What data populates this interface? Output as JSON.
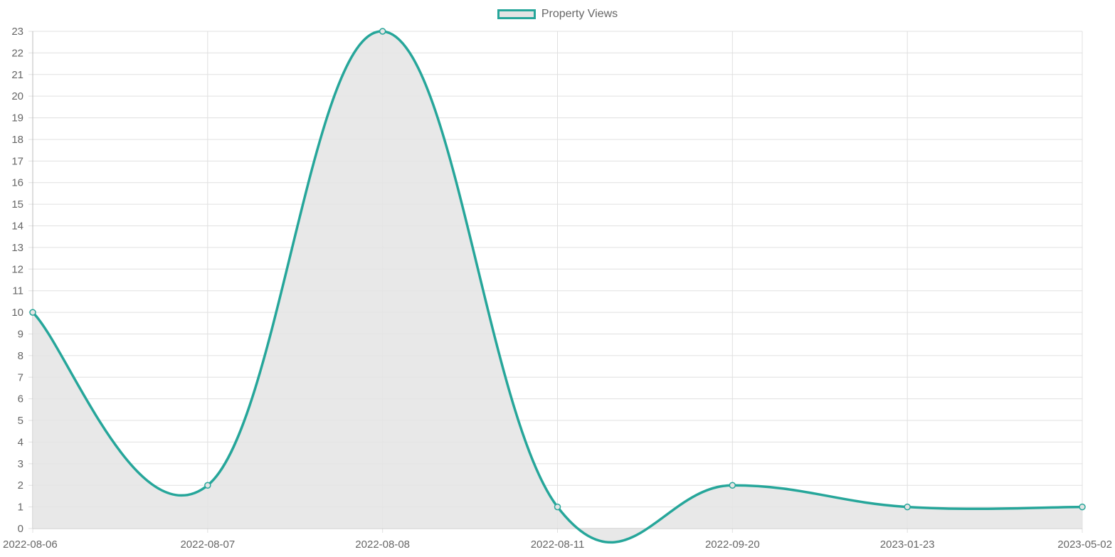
{
  "chart_data": {
    "type": "line",
    "categories": [
      "2022-08-06",
      "2022-08-07",
      "2022-08-08",
      "2022-08-11",
      "2022-09-20",
      "2023-01-23",
      "2023-05-02"
    ],
    "series": [
      {
        "name": "Property Views",
        "values": [
          10,
          2,
          23,
          1,
          2,
          1,
          1
        ]
      }
    ],
    "ylim": [
      0,
      23
    ],
    "y_ticks": [
      0,
      1,
      2,
      3,
      4,
      5,
      6,
      7,
      8,
      9,
      10,
      11,
      12,
      13,
      14,
      15,
      16,
      17,
      18,
      19,
      20,
      21,
      22,
      23
    ],
    "grid": true,
    "fill": true,
    "smooth": true,
    "legend_position": "top-center",
    "colors": {
      "line": "#26a69a",
      "fill": "#e4e4e4",
      "grid": "#e0e0e0",
      "text": "#666666"
    }
  }
}
